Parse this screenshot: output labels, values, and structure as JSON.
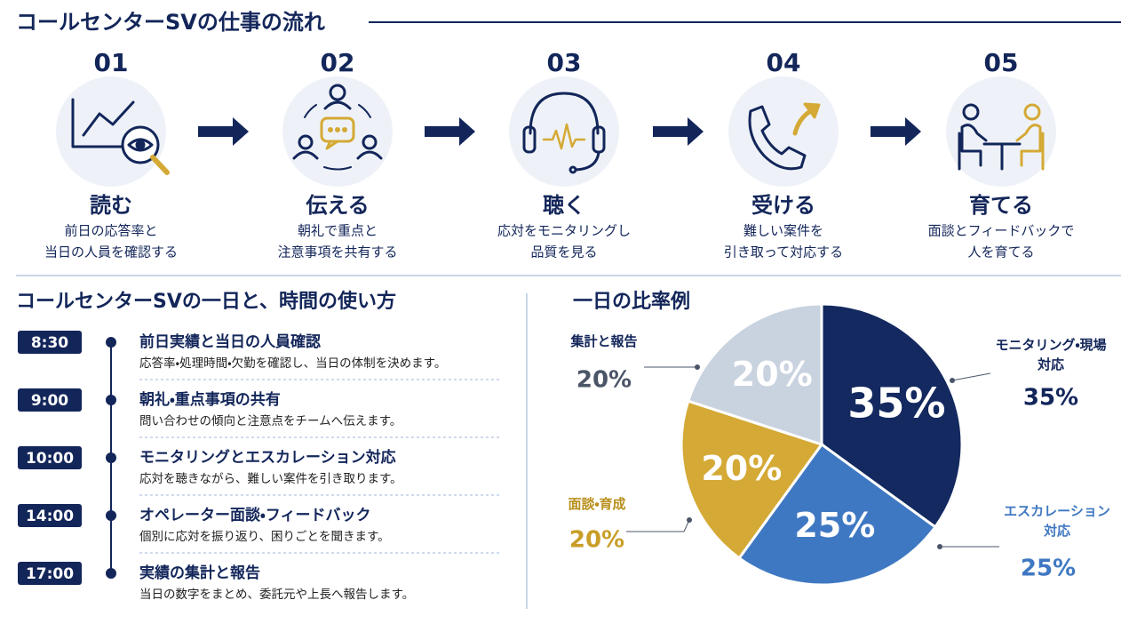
{
  "flow": {
    "title": "コールセンターSVの仕事の流れ",
    "steps": [
      {
        "number": "01",
        "title": "読む",
        "desc": [
          "前日の応答率と",
          "当日の人員を確認する"
        ]
      },
      {
        "number": "02",
        "title": "伝える",
        "desc": [
          "朝礼で重点と",
          "注意事項を共有する"
        ]
      },
      {
        "number": "03",
        "title": "聴く",
        "desc": [
          "応対をモニタリングし",
          "品質を見る"
        ]
      },
      {
        "number": "04",
        "title": "受ける",
        "desc": [
          "難しい案件を",
          "引き取って対応する"
        ]
      },
      {
        "number": "05",
        "title": "育てる",
        "desc": [
          "面談とフィードバックで",
          "人を育てる"
        ]
      }
    ]
  },
  "schedule": {
    "title": "コールセンターSVの一日と、時間の使い方",
    "items": [
      {
        "time": "8:30",
        "title": "前日実績と当日の人員確認",
        "desc": "応答率・処理時間・欠勤を確認し、当日の体制を決めます。"
      },
      {
        "time": "9:00",
        "title": "朝礼・重点事項の共有",
        "desc": "問い合わせの傾向と注意点をチームへ伝えます。"
      },
      {
        "time": "10:00",
        "title": "モニタリングとエスカレーション対応",
        "desc": "応対を聴きながら、難しい案件を引き取ります。"
      },
      {
        "time": "14:00",
        "title": "オペレーター面談・フィードバック",
        "desc": "個別に応対を振り返り、困りごとを聞きます。"
      },
      {
        "time": "17:00",
        "title": "実績の集計と報告",
        "desc": "当日の数字をまとめ、委託元や上長へ報告します。"
      }
    ]
  },
  "chart_data": {
    "type": "pie",
    "title": "一日の比率例",
    "categories": [
      "モニタリング・現場対応",
      "エスカレーション対応",
      "面談・育成",
      "集計と報告"
    ],
    "values": [
      35,
      25,
      20,
      20
    ],
    "value_labels": [
      "35%",
      "25%",
      "20%",
      "20%"
    ],
    "colors": [
      "#13295f",
      "#3f78c2",
      "#d4a935",
      "#c9d2df"
    ]
  }
}
